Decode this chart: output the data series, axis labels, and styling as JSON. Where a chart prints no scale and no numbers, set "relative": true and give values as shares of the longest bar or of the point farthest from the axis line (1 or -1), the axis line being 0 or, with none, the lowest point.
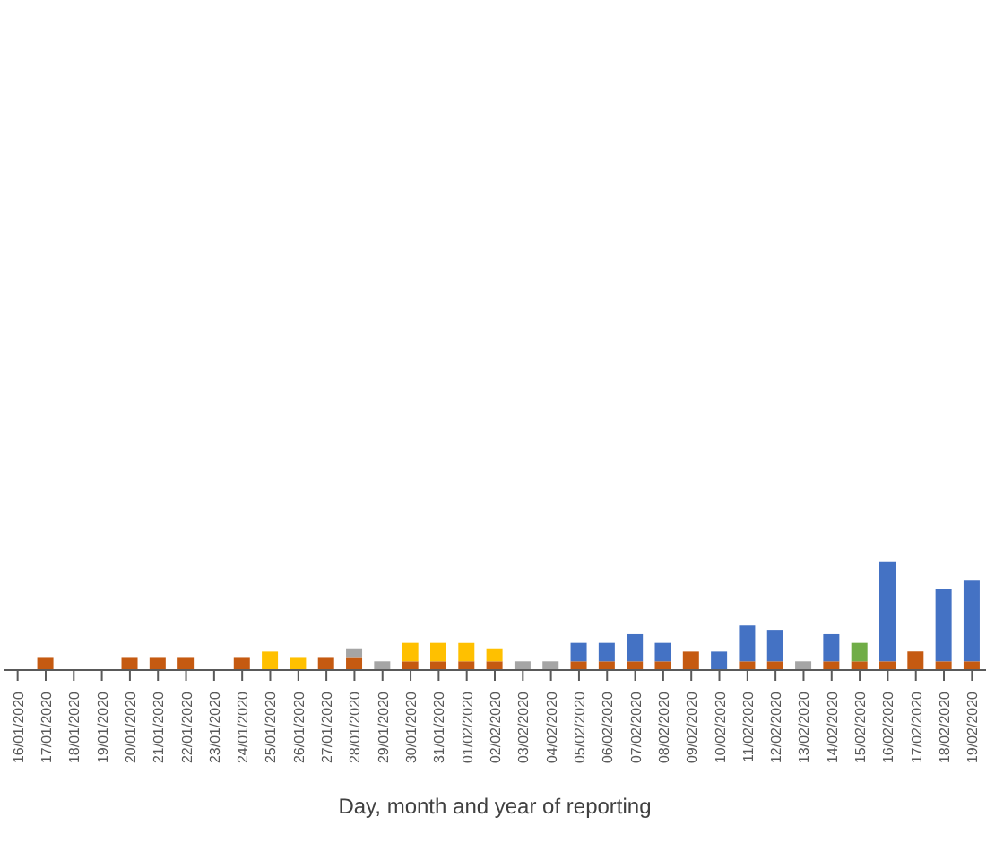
{
  "chart_data": {
    "type": "bar",
    "relative": true,
    "stacked": true,
    "xlabel": "Day, month and year of reporting",
    "categories": [
      "16/01/2020",
      "17/01/2020",
      "18/01/2020",
      "19/01/2020",
      "20/01/2020",
      "21/01/2020",
      "22/01/2020",
      "23/01/2020",
      "24/01/2020",
      "25/01/2020",
      "26/01/2020",
      "27/01/2020",
      "28/01/2020",
      "29/01/2020",
      "30/01/2020",
      "31/01/2020",
      "01/02/2020",
      "02/02/2020",
      "03/02/2020",
      "04/02/2020",
      "05/02/2020",
      "06/02/2020",
      "07/02/2020",
      "08/02/2020",
      "09/02/2020",
      "10/02/2020",
      "11/02/2020",
      "12/02/2020",
      "13/02/2020",
      "14/02/2020",
      "15/02/2020",
      "16/02/2020",
      "17/02/2020",
      "18/02/2020",
      "19/02/2020"
    ],
    "series": [
      {
        "color": "#c55a11",
        "values": [
          0,
          0.12,
          0,
          0,
          0.12,
          0.12,
          0.12,
          0,
          0.12,
          0,
          0,
          0.12,
          0.12,
          0,
          0.08,
          0.08,
          0.08,
          0.08,
          0,
          0,
          0.08,
          0.08,
          0.08,
          0.08,
          0.17,
          0,
          0.08,
          0.08,
          0,
          0.08,
          0.08,
          0.08,
          0.17,
          0.08,
          0.08
        ]
      },
      {
        "color": "#ffc000",
        "values": [
          0,
          0,
          0,
          0,
          0,
          0,
          0,
          0,
          0,
          0.17,
          0.12,
          0,
          0,
          0,
          0.17,
          0.17,
          0.17,
          0.12,
          0,
          0,
          0,
          0,
          0,
          0,
          0,
          0,
          0,
          0,
          0,
          0,
          0,
          0,
          0,
          0,
          0
        ]
      },
      {
        "color": "#a5a5a5",
        "values": [
          0,
          0,
          0,
          0,
          0,
          0,
          0,
          0,
          0,
          0,
          0,
          0,
          0.08,
          0.08,
          0,
          0,
          0,
          0,
          0.08,
          0.08,
          0,
          0,
          0,
          0,
          0,
          0,
          0,
          0,
          0.08,
          0,
          0,
          0,
          0,
          0,
          0
        ]
      },
      {
        "color": "#70ad47",
        "values": [
          0,
          0,
          0,
          0,
          0,
          0,
          0,
          0,
          0,
          0,
          0,
          0,
          0,
          0,
          0,
          0,
          0,
          0,
          0,
          0,
          0,
          0,
          0,
          0,
          0,
          0,
          0,
          0,
          0,
          0,
          0.17,
          0,
          0,
          0,
          0
        ]
      },
      {
        "color": "#4472c4",
        "values": [
          0,
          0,
          0,
          0,
          0,
          0,
          0,
          0,
          0,
          0,
          0,
          0,
          0,
          0,
          0,
          0,
          0,
          0,
          0,
          0,
          0.17,
          0.17,
          0.25,
          0.17,
          0,
          0.17,
          0.33,
          0.29,
          0,
          0.25,
          0,
          0.92,
          0,
          0.67,
          0.75
        ]
      }
    ]
  }
}
